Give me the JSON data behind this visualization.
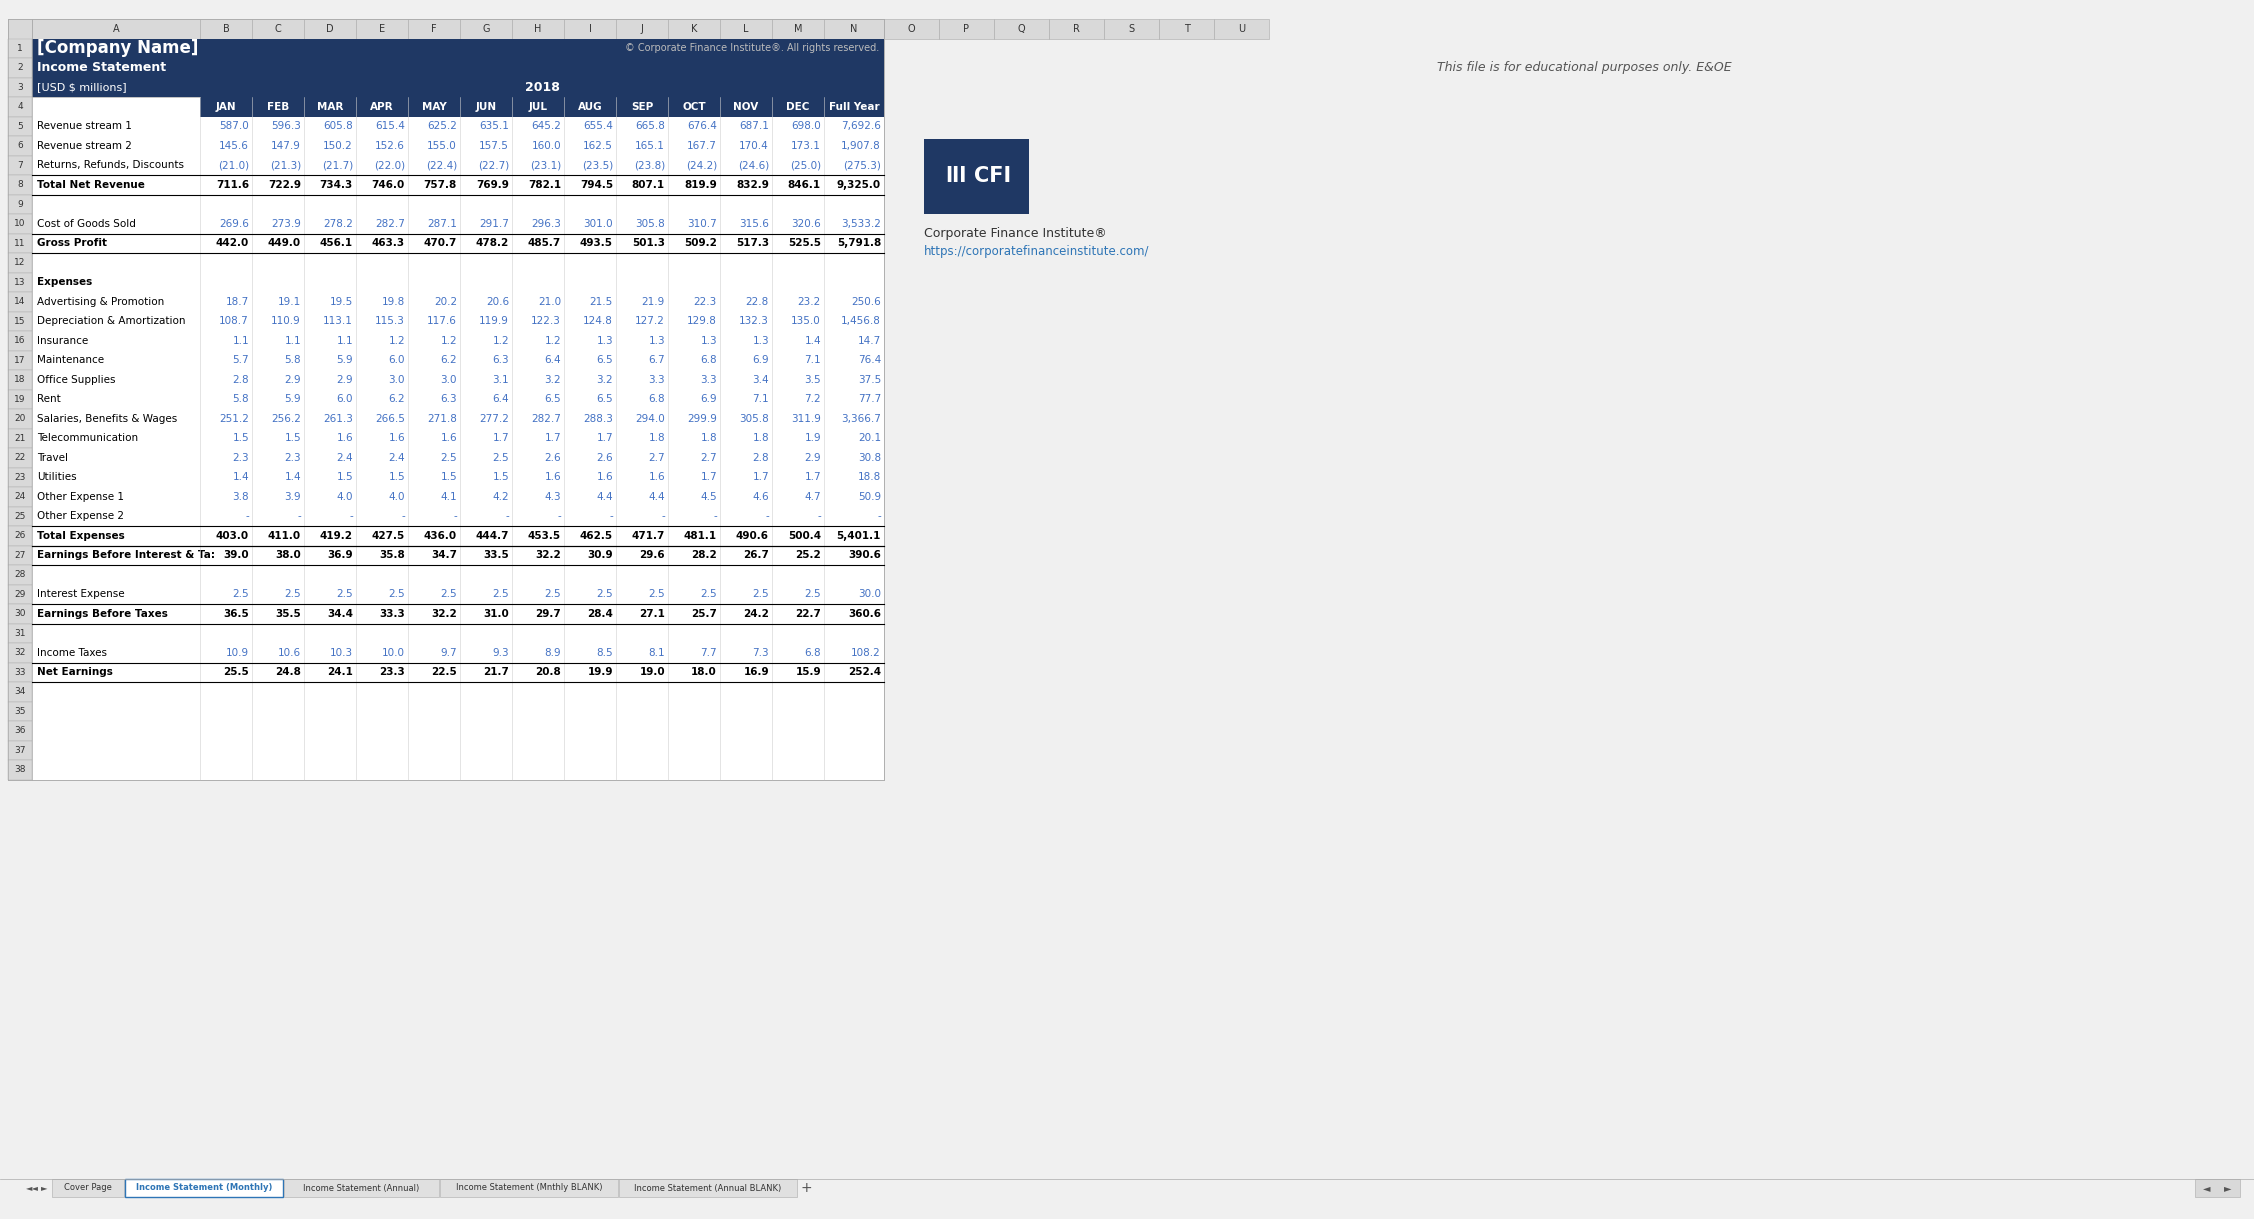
{
  "title_company": "[Company Name]",
  "title_stmt": "Income Statement",
  "title_units": "[USD $ millions]",
  "year": "2018",
  "copyright": "© Corporate Finance Institute®. All rights reserved.",
  "cfi_text1": "Corporate Finance Institute®",
  "cfi_text2": "https://corporatefinanceinstitute.com/",
  "edu_text": "This file is for educational purposes only. E&OE",
  "header_bg": "#1F3864",
  "header_fg": "#FFFFFF",
  "data_blue": "#4472C4",
  "bold_black": "#000000",
  "tab_active_fg": "#2E75B6",
  "sheet_tabs": [
    "Cover Page",
    "Income Statement (Monthly)",
    "Income Statement (Annual)",
    "Income Statement (Mnthly BLANK)",
    "Income Statement (Annual BLANK)"
  ],
  "active_tab": 1,
  "rows": [
    {
      "row": 1,
      "label": "[Company Name]",
      "type": "company_name",
      "values": []
    },
    {
      "row": 2,
      "label": "Income Statement",
      "type": "section_header2",
      "values": []
    },
    {
      "row": 3,
      "label": "[USD $ millions]",
      "type": "units",
      "values": []
    },
    {
      "row": 4,
      "label": "",
      "type": "col_header",
      "values": [
        "JAN",
        "FEB",
        "MAR",
        "APR",
        "MAY",
        "JUN",
        "JUL",
        "AUG",
        "SEP",
        "OCT",
        "NOV",
        "DEC",
        "Full Year"
      ]
    },
    {
      "row": 5,
      "label": "Revenue stream 1",
      "type": "data",
      "values": [
        587.0,
        596.3,
        605.8,
        615.4,
        625.2,
        635.1,
        645.2,
        655.4,
        665.8,
        676.4,
        687.1,
        698.0,
        7692.6
      ]
    },
    {
      "row": 6,
      "label": "Revenue stream 2",
      "type": "data",
      "values": [
        145.6,
        147.9,
        150.2,
        152.6,
        155.0,
        157.5,
        160.0,
        162.5,
        165.1,
        167.7,
        170.4,
        173.1,
        1907.8
      ]
    },
    {
      "row": 7,
      "label": "Returns, Refunds, Discounts",
      "type": "data_paren",
      "values": [
        "(21.0)",
        "(21.3)",
        "(21.7)",
        "(22.0)",
        "(22.4)",
        "(22.7)",
        "(23.1)",
        "(23.5)",
        "(23.8)",
        "(24.2)",
        "(24.6)",
        "(25.0)",
        "(275.3)"
      ]
    },
    {
      "row": 8,
      "label": "Total Net Revenue",
      "type": "total",
      "values": [
        711.6,
        722.9,
        734.3,
        746.0,
        757.8,
        769.9,
        782.1,
        794.5,
        807.1,
        819.9,
        832.9,
        846.1,
        9325.0
      ]
    },
    {
      "row": 9,
      "label": "",
      "type": "empty",
      "values": []
    },
    {
      "row": 10,
      "label": "Cost of Goods Sold",
      "type": "data",
      "values": [
        269.6,
        273.9,
        278.2,
        282.7,
        287.1,
        291.7,
        296.3,
        301.0,
        305.8,
        310.7,
        315.6,
        320.6,
        3533.2
      ]
    },
    {
      "row": 11,
      "label": "Gross Profit",
      "type": "total",
      "values": [
        442.0,
        449.0,
        456.1,
        463.3,
        470.7,
        478.2,
        485.7,
        493.5,
        501.3,
        509.2,
        517.3,
        525.5,
        5791.8
      ]
    },
    {
      "row": 12,
      "label": "",
      "type": "empty",
      "values": []
    },
    {
      "row": 13,
      "label": "Expenses",
      "type": "section_label",
      "values": []
    },
    {
      "row": 14,
      "label": "Advertising & Promotion",
      "type": "data",
      "values": [
        18.7,
        19.1,
        19.5,
        19.8,
        20.2,
        20.6,
        21.0,
        21.5,
        21.9,
        22.3,
        22.8,
        23.2,
        250.6
      ]
    },
    {
      "row": 15,
      "label": "Depreciation & Amortization",
      "type": "data",
      "values": [
        108.7,
        110.9,
        113.1,
        115.3,
        117.6,
        119.9,
        122.3,
        124.8,
        127.2,
        129.8,
        132.3,
        135.0,
        1456.8
      ]
    },
    {
      "row": 16,
      "label": "Insurance",
      "type": "data",
      "values": [
        1.1,
        1.1,
        1.1,
        1.2,
        1.2,
        1.2,
        1.2,
        1.3,
        1.3,
        1.3,
        1.3,
        1.4,
        14.7
      ]
    },
    {
      "row": 17,
      "label": "Maintenance",
      "type": "data",
      "values": [
        5.7,
        5.8,
        5.9,
        6.0,
        6.2,
        6.3,
        6.4,
        6.5,
        6.7,
        6.8,
        6.9,
        7.1,
        76.4
      ]
    },
    {
      "row": 18,
      "label": "Office Supplies",
      "type": "data",
      "values": [
        2.8,
        2.9,
        2.9,
        3.0,
        3.0,
        3.1,
        3.2,
        3.2,
        3.3,
        3.3,
        3.4,
        3.5,
        37.5
      ]
    },
    {
      "row": 19,
      "label": "Rent",
      "type": "data",
      "values": [
        5.8,
        5.9,
        6.0,
        6.2,
        6.3,
        6.4,
        6.5,
        6.5,
        6.8,
        6.9,
        7.1,
        7.2,
        77.7
      ]
    },
    {
      "row": 20,
      "label": "Salaries, Benefits & Wages",
      "type": "data",
      "values": [
        251.2,
        256.2,
        261.3,
        266.5,
        271.8,
        277.2,
        282.7,
        288.3,
        294.0,
        299.9,
        305.8,
        311.9,
        3366.7
      ]
    },
    {
      "row": 21,
      "label": "Telecommunication",
      "type": "data",
      "values": [
        1.5,
        1.5,
        1.6,
        1.6,
        1.6,
        1.7,
        1.7,
        1.7,
        1.8,
        1.8,
        1.8,
        1.9,
        20.1
      ]
    },
    {
      "row": 22,
      "label": "Travel",
      "type": "data",
      "values": [
        2.3,
        2.3,
        2.4,
        2.4,
        2.5,
        2.5,
        2.6,
        2.6,
        2.7,
        2.7,
        2.8,
        2.9,
        30.8
      ]
    },
    {
      "row": 23,
      "label": "Utilities",
      "type": "data",
      "values": [
        1.4,
        1.4,
        1.5,
        1.5,
        1.5,
        1.5,
        1.6,
        1.6,
        1.6,
        1.7,
        1.7,
        1.7,
        18.8
      ]
    },
    {
      "row": 24,
      "label": "Other Expense 1",
      "type": "data",
      "values": [
        3.8,
        3.9,
        4.0,
        4.0,
        4.1,
        4.2,
        4.3,
        4.4,
        4.4,
        4.5,
        4.6,
        4.7,
        50.9
      ]
    },
    {
      "row": 25,
      "label": "Other Expense 2",
      "type": "data_dash",
      "values": [
        "-",
        "-",
        "-",
        "-",
        "-",
        "-",
        "-",
        "-",
        "-",
        "-",
        "-",
        "-",
        "-"
      ]
    },
    {
      "row": 26,
      "label": "Total Expenses",
      "type": "total",
      "values": [
        403.0,
        411.0,
        419.2,
        427.5,
        436.0,
        444.7,
        453.5,
        462.5,
        471.7,
        481.1,
        490.6,
        500.4,
        5401.1
      ]
    },
    {
      "row": 27,
      "label": "Earnings Before Interest & Ta:",
      "type": "total",
      "values": [
        39.0,
        38.0,
        36.9,
        35.8,
        34.7,
        33.5,
        32.2,
        30.9,
        29.6,
        28.2,
        26.7,
        25.2,
        390.6
      ]
    },
    {
      "row": 28,
      "label": "",
      "type": "empty",
      "values": []
    },
    {
      "row": 29,
      "label": "Interest Expense",
      "type": "data",
      "values": [
        2.5,
        2.5,
        2.5,
        2.5,
        2.5,
        2.5,
        2.5,
        2.5,
        2.5,
        2.5,
        2.5,
        2.5,
        30.0
      ]
    },
    {
      "row": 30,
      "label": "Earnings Before Taxes",
      "type": "total",
      "values": [
        36.5,
        35.5,
        34.4,
        33.3,
        32.2,
        31.0,
        29.7,
        28.4,
        27.1,
        25.7,
        24.2,
        22.7,
        360.6
      ]
    },
    {
      "row": 31,
      "label": "",
      "type": "empty",
      "values": []
    },
    {
      "row": 32,
      "label": "Income Taxes",
      "type": "data",
      "values": [
        10.9,
        10.6,
        10.3,
        10.0,
        9.7,
        9.3,
        8.9,
        8.5,
        8.1,
        7.7,
        7.3,
        6.8,
        108.2
      ]
    },
    {
      "row": 33,
      "label": "Net Earnings",
      "type": "total_final",
      "values": [
        25.5,
        24.8,
        24.1,
        23.3,
        22.5,
        21.7,
        20.8,
        19.9,
        19.0,
        18.0,
        16.9,
        15.9,
        252.4
      ]
    },
    {
      "row": 34,
      "label": "",
      "type": "empty",
      "values": []
    },
    {
      "row": 35,
      "label": "",
      "type": "empty",
      "values": []
    },
    {
      "row": 36,
      "label": "",
      "type": "empty",
      "values": []
    },
    {
      "row": 37,
      "label": "",
      "type": "empty",
      "values": []
    },
    {
      "row": 38,
      "label": "",
      "type": "empty",
      "values": []
    }
  ]
}
